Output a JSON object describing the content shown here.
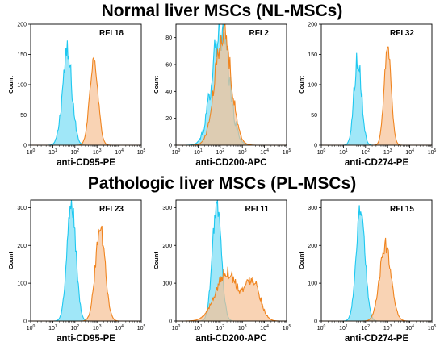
{
  "rows": [
    {
      "title": "Normal liver MSCs (NL-MSCs)"
    },
    {
      "title": "Pathologic liver MSCs (PL-MSCs)"
    }
  ],
  "colors": {
    "control": "#1ec8f0",
    "control_fill": "#8fe3f7",
    "marker": "#f0841e",
    "marker_fill": "#f7c194"
  },
  "chart_data": [
    {
      "type": "area",
      "row": 0,
      "col": 0,
      "title": "",
      "xlabel": "anti-CD95-PE",
      "ylabel": "Count",
      "x_scale": "log",
      "xlim": [
        1,
        100000
      ],
      "ylim": [
        0,
        200
      ],
      "yticks": [
        0,
        50,
        100,
        150,
        200
      ],
      "annotation": "RFI 18",
      "series": [
        {
          "role": "control",
          "peak_x": 45,
          "width": 0.22,
          "peak": 148,
          "noise": 0.18
        },
        {
          "role": "marker",
          "peak_x": 720,
          "width": 0.19,
          "peak": 140,
          "noise": 0.07
        }
      ]
    },
    {
      "type": "area",
      "row": 0,
      "col": 1,
      "title": "",
      "xlabel": "anti-CD200-APC",
      "ylabel": "Count",
      "x_scale": "log",
      "xlim": [
        1,
        100000
      ],
      "ylim": [
        0,
        90
      ],
      "yticks": [
        0,
        20,
        40,
        60,
        80
      ],
      "annotation": "RFI 2",
      "series": [
        {
          "role": "control",
          "peak_x": 100,
          "width": 0.38,
          "peak": 88,
          "noise": 0.22
        },
        {
          "role": "marker",
          "peak_x": 135,
          "width": 0.36,
          "peak": 85,
          "noise": 0.14
        }
      ]
    },
    {
      "type": "area",
      "row": 0,
      "col": 2,
      "title": "",
      "xlabel": "anti-CD274-PE",
      "ylabel": "Count",
      "x_scale": "log",
      "xlim": [
        1,
        100000
      ],
      "ylim": [
        0,
        200
      ],
      "yticks": [
        0,
        50,
        100,
        150,
        200
      ],
      "annotation": "RFI 32",
      "series": [
        {
          "role": "control",
          "peak_x": 45,
          "width": 0.17,
          "peak": 148,
          "noise": 0.18
        },
        {
          "role": "marker",
          "peak_x": 1000,
          "width": 0.16,
          "peak": 160,
          "noise": 0.07
        }
      ]
    },
    {
      "type": "area",
      "row": 1,
      "col": 0,
      "title": "",
      "xlabel": "anti-CD95-PE",
      "ylabel": "Count",
      "x_scale": "log",
      "xlim": [
        1,
        100000
      ],
      "ylim": [
        0,
        320
      ],
      "yticks": [
        0,
        100,
        200,
        300
      ],
      "annotation": "RFI 23",
      "series": [
        {
          "role": "control",
          "peak_x": 70,
          "width": 0.2,
          "peak": 310,
          "noise": 0.1
        },
        {
          "role": "marker",
          "peak_x": 1400,
          "width": 0.22,
          "peak": 245,
          "noise": 0.1
        }
      ]
    },
    {
      "type": "area",
      "row": 1,
      "col": 1,
      "title": "",
      "xlabel": "anti-CD200-APC",
      "ylabel": "Count",
      "x_scale": "log",
      "xlim": [
        1,
        100000
      ],
      "ylim": [
        0,
        320
      ],
      "yticks": [
        0,
        100,
        200,
        300
      ],
      "annotation": "RFI 11",
      "series": [
        {
          "role": "control",
          "peak_x": 70,
          "width": 0.2,
          "peak": 310,
          "noise": 0.1
        },
        {
          "role": "marker",
          "peak_x": 200,
          "width": 0.5,
          "peak": 130,
          "noise": 0.14,
          "secondary_x": 3000,
          "secondary_peak": 105
        }
      ]
    },
    {
      "type": "area",
      "row": 1,
      "col": 2,
      "title": "",
      "xlabel": "anti-CD274-PE",
      "ylabel": "Count",
      "x_scale": "log",
      "xlim": [
        1,
        100000
      ],
      "ylim": [
        0,
        320
      ],
      "yticks": [
        0,
        100,
        200,
        300
      ],
      "annotation": "RFI 15",
      "series": [
        {
          "role": "control",
          "peak_x": 60,
          "width": 0.2,
          "peak": 300,
          "noise": 0.1
        },
        {
          "role": "marker",
          "peak_x": 800,
          "width": 0.26,
          "peak": 200,
          "noise": 0.1
        }
      ]
    }
  ]
}
